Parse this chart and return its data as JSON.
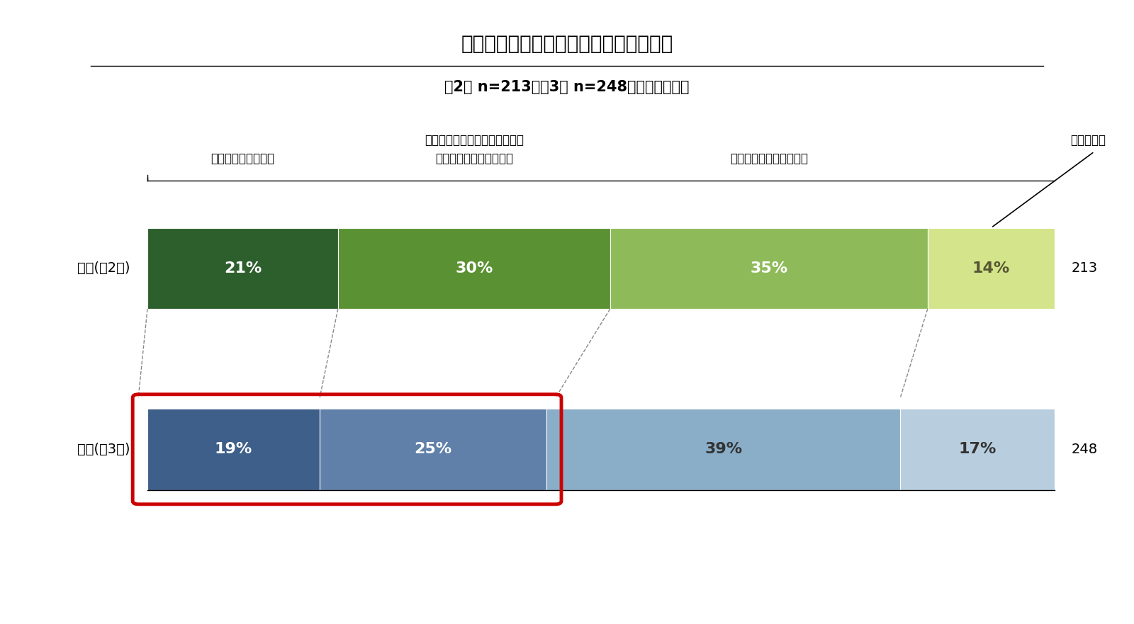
{
  "title": "将来のインバウンド観光客受け入れ計画",
  "subtitle": "第2回 n=213／第3回 n=248／共に単数回答",
  "rows": [
    "全体(第2回)",
    "全体(第3回)"
  ],
  "n_values": [
    213,
    248
  ],
  "values": [
    [
      21,
      30,
      35,
      14
    ],
    [
      19,
      25,
      39,
      17
    ]
  ],
  "colors_row0": [
    "#2d5f2d",
    "#5a9132",
    "#8fba5a",
    "#d4e48a"
  ],
  "colors_row1": [
    "#3d5f8a",
    "#6080aa",
    "#8aaec8",
    "#b8cede"
  ],
  "text_colors_row0": [
    "#ffffff",
    "#ffffff",
    "#ffffff",
    "#555533"
  ],
  "text_colors_row1": [
    "#ffffff",
    "#ffffff",
    "#333333",
    "#333333"
  ],
  "background_color": "#ffffff",
  "red_rect_color": "#cc0000",
  "dashed_line_color": "#888888",
  "header_line1_labels": [
    "受け入れたいと思う",
    "",
    "今後も受入の予定はない",
    "分からない"
  ],
  "header_line2_top": [
    "",
    "受け入れたいと思っているが、",
    "",
    ""
  ],
  "header_line2_bot": [
    "",
    "課題があると感じている",
    "",
    ""
  ]
}
